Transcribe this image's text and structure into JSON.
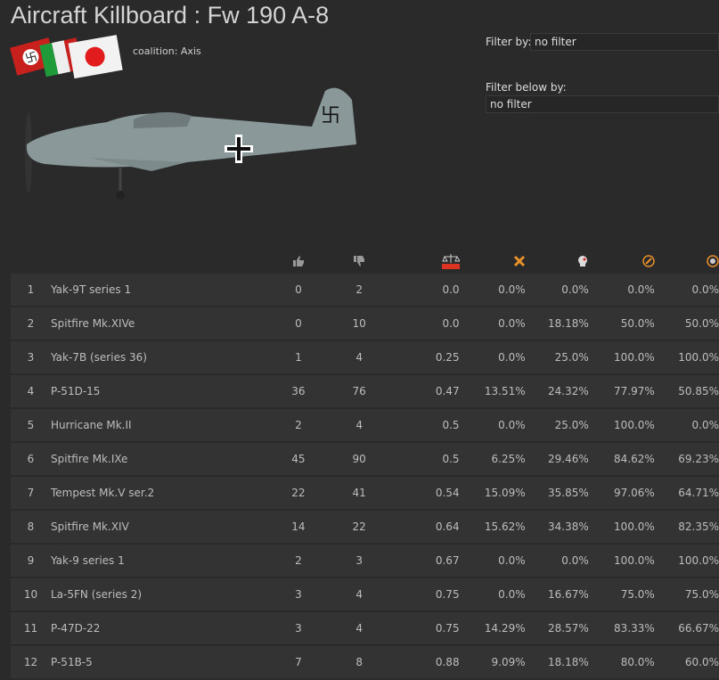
{
  "title": "Aircraft Killboard : Fw 190 A-8",
  "coalition": "coalition: Axis",
  "filter": {
    "label": "Filter by:",
    "value": "no filter",
    "below_label": "Filter below by:",
    "below_value": "no filter"
  },
  "columns": [
    "thumbs-up-icon",
    "thumbs-down-icon",
    "balance-scale-icon",
    "crossed-planes-icon",
    "skull-icon",
    "target-plane-icon",
    "target-skull-icon"
  ],
  "rows": [
    {
      "n": "1",
      "name": "Yak-9T series 1",
      "up": "0",
      "down": "2",
      "ratio": "0.0",
      "a": "0.0%",
      "b": "0.0%",
      "c": "0.0%",
      "d": "0.0%"
    },
    {
      "n": "2",
      "name": "Spitfire Mk.XIVe",
      "up": "0",
      "down": "10",
      "ratio": "0.0",
      "a": "0.0%",
      "b": "18.18%",
      "c": "50.0%",
      "d": "50.0%"
    },
    {
      "n": "3",
      "name": "Yak-7B (series 36)",
      "up": "1",
      "down": "4",
      "ratio": "0.25",
      "a": "0.0%",
      "b": "25.0%",
      "c": "100.0%",
      "d": "100.0%"
    },
    {
      "n": "4",
      "name": "P-51D-15",
      "up": "36",
      "down": "76",
      "ratio": "0.47",
      "a": "13.51%",
      "b": "24.32%",
      "c": "77.97%",
      "d": "50.85%"
    },
    {
      "n": "5",
      "name": "Hurricane Mk.II",
      "up": "2",
      "down": "4",
      "ratio": "0.5",
      "a": "0.0%",
      "b": "25.0%",
      "c": "100.0%",
      "d": "0.0%"
    },
    {
      "n": "6",
      "name": "Spitfire Mk.IXe",
      "up": "45",
      "down": "90",
      "ratio": "0.5",
      "a": "6.25%",
      "b": "29.46%",
      "c": "84.62%",
      "d": "69.23%"
    },
    {
      "n": "7",
      "name": "Tempest Mk.V ser.2",
      "up": "22",
      "down": "41",
      "ratio": "0.54",
      "a": "15.09%",
      "b": "35.85%",
      "c": "97.06%",
      "d": "64.71%"
    },
    {
      "n": "8",
      "name": "Spitfire Mk.XIV",
      "up": "14",
      "down": "22",
      "ratio": "0.64",
      "a": "15.62%",
      "b": "34.38%",
      "c": "100.0%",
      "d": "82.35%"
    },
    {
      "n": "9",
      "name": "Yak-9 series 1",
      "up": "2",
      "down": "3",
      "ratio": "0.67",
      "a": "0.0%",
      "b": "0.0%",
      "c": "100.0%",
      "d": "100.0%"
    },
    {
      "n": "10",
      "name": "La-5FN (series 2)",
      "up": "3",
      "down": "4",
      "ratio": "0.75",
      "a": "0.0%",
      "b": "16.67%",
      "c": "75.0%",
      "d": "75.0%"
    },
    {
      "n": "11",
      "name": "P-47D-22",
      "up": "3",
      "down": "4",
      "ratio": "0.75",
      "a": "14.29%",
      "b": "28.57%",
      "c": "83.33%",
      "d": "66.67%"
    },
    {
      "n": "12",
      "name": "P-51B-5",
      "up": "7",
      "down": "8",
      "ratio": "0.88",
      "a": "9.09%",
      "b": "18.18%",
      "c": "80.0%",
      "d": "60.0%"
    }
  ]
}
